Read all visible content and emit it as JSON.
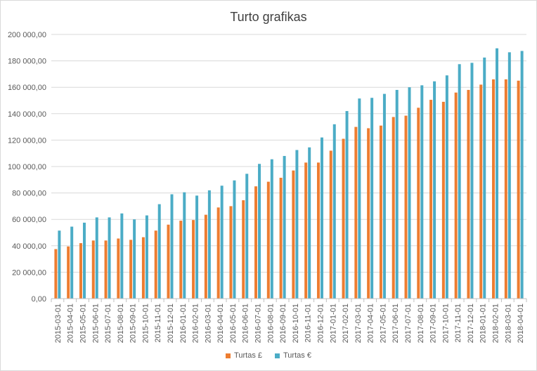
{
  "chart_data": {
    "type": "bar",
    "title": "Turto grafikas",
    "xlabel": "",
    "ylabel": "",
    "ylim": [
      0,
      200000
    ],
    "ytick_labels": [
      "0,00",
      "20 000,00",
      "40 000,00",
      "60 000,00",
      "80 000,00",
      "100 000,00",
      "120 000,00",
      "140 000,00",
      "160 000,00",
      "180 000,00",
      "200 000,00"
    ],
    "grid": true,
    "legend_position": "bottom",
    "categories": [
      "2015-03-01",
      "2015-04-01",
      "2015-05-01",
      "2015-06-01",
      "2015-07-01",
      "2015-08-01",
      "2015-09-01",
      "2015-10-01",
      "2015-11-01",
      "2015-12-01",
      "2016-01-01",
      "2016-02-01",
      "2016-03-01",
      "2016-04-01",
      "2016-05-01",
      "2016-06-01",
      "2016-07-01",
      "2016-08-01",
      "2016-09-01",
      "2016-10-01",
      "2016-11-01",
      "2016-12-01",
      "2017-01-01",
      "2017-02-01",
      "2017-03-01",
      "2017-04-01",
      "2017-05-01",
      "2017-06-01",
      "2017-07-01",
      "2017-08-01",
      "2017-09-01",
      "2017-10-01",
      "2017-11-01",
      "2017-12-01",
      "2018-01-01",
      "2018-02-01",
      "2018-03-01",
      "2018-04-01"
    ],
    "series": [
      {
        "name": "Turtas £",
        "color": "#ed7d31",
        "values": [
          37500,
          39500,
          42000,
          44000,
          44000,
          45500,
          44500,
          46500,
          51500,
          56000,
          59000,
          59500,
          63500,
          69000,
          70000,
          74500,
          85000,
          88500,
          91500,
          97000,
          103000,
          103000,
          112000,
          121000,
          130000,
          129000,
          131000,
          137500,
          138500,
          144500,
          150500,
          149000,
          156000,
          158000,
          162000,
          166000,
          166000,
          165000
        ]
      },
      {
        "name": "Turtas €",
        "color": "#4bacc6",
        "values": [
          51500,
          54500,
          57500,
          61500,
          61500,
          64500,
          60000,
          63000,
          71500,
          79000,
          80500,
          78000,
          82000,
          85500,
          89500,
          94500,
          102000,
          105500,
          108000,
          112500,
          114500,
          122000,
          132000,
          142000,
          151500,
          152000,
          155000,
          158000,
          160000,
          161500,
          164500,
          169000,
          177500,
          178500,
          182500,
          189500,
          186500,
          187500
        ]
      }
    ]
  }
}
